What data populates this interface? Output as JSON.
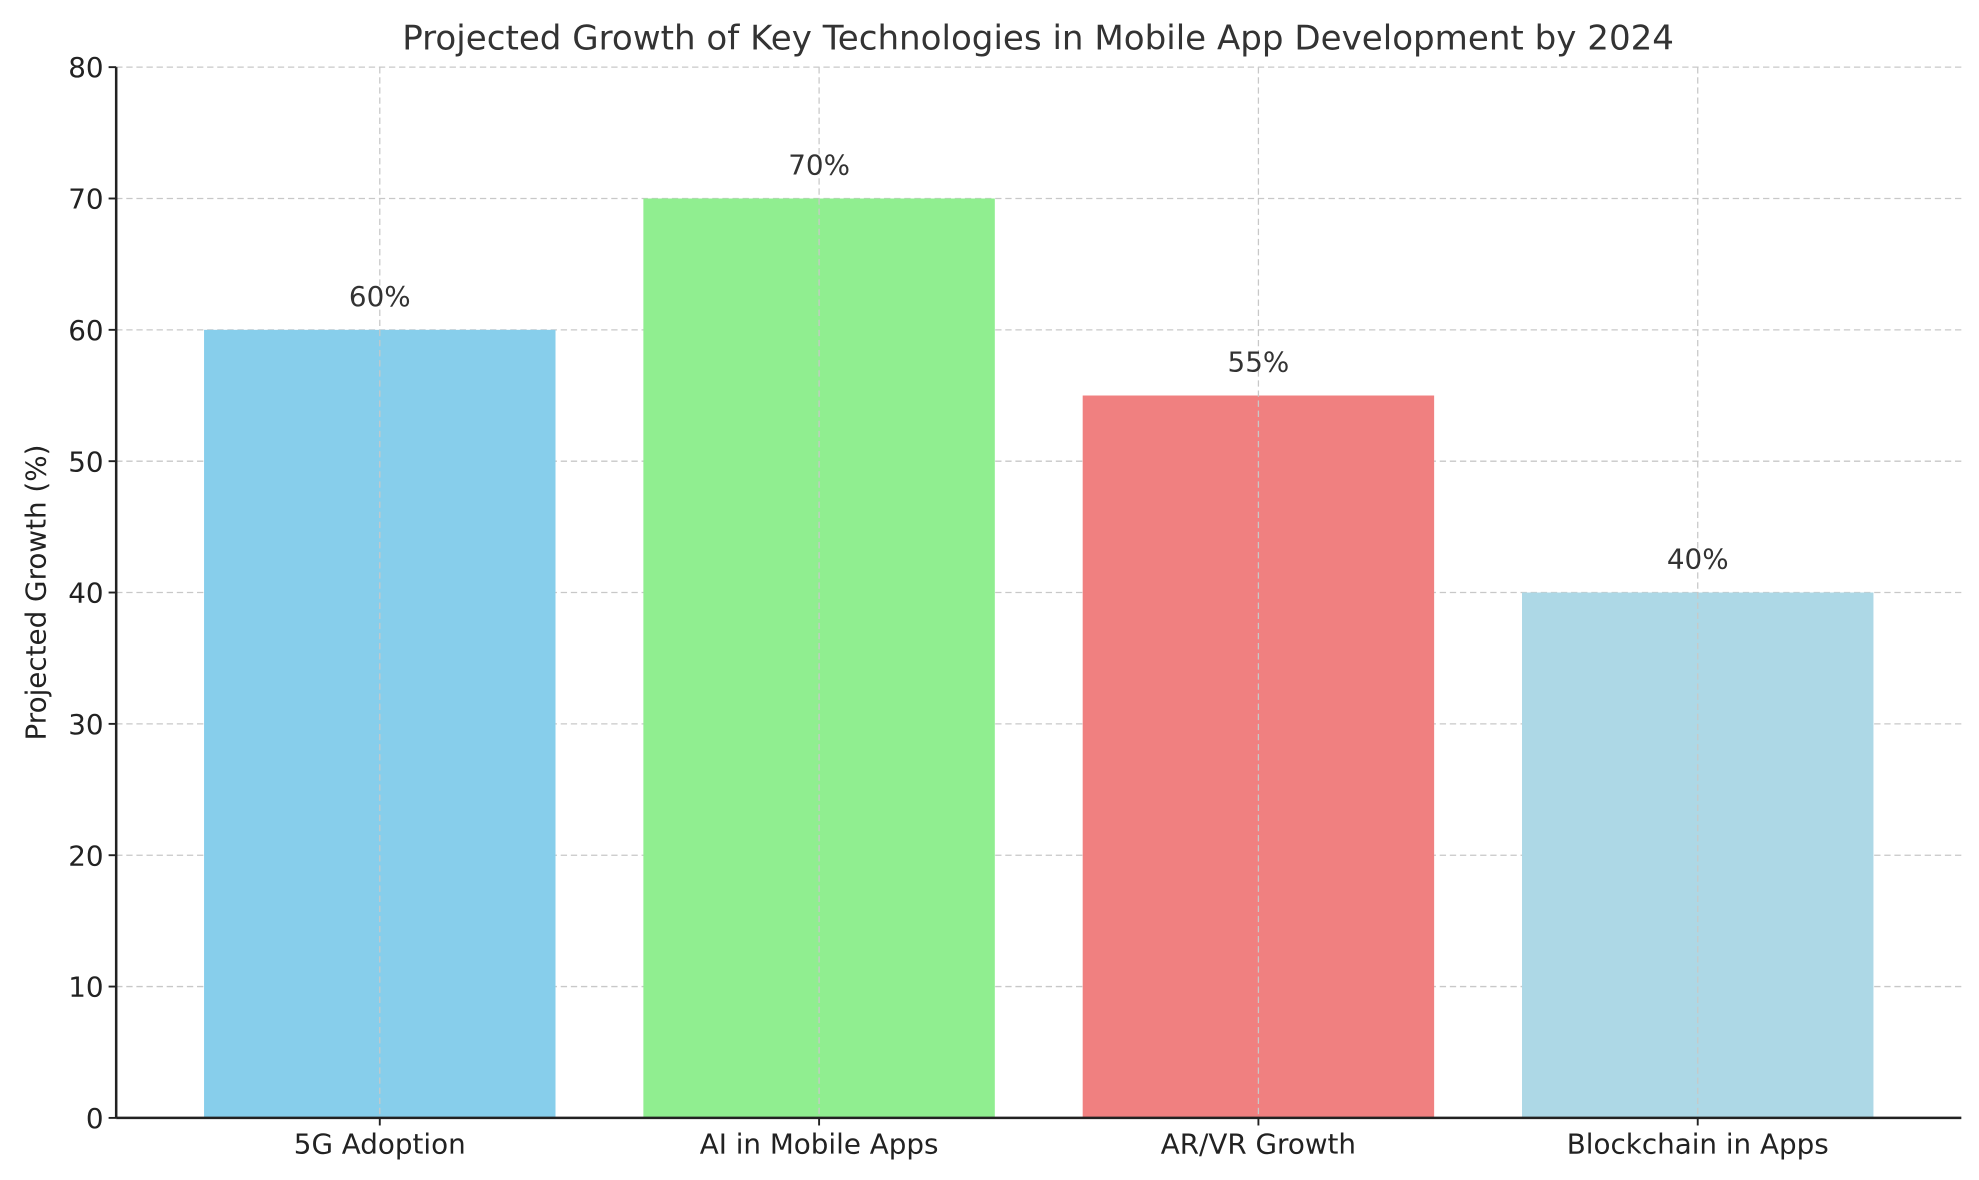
{
  "chart_data": {
    "type": "bar",
    "title": "Projected Growth of Key Technologies in Mobile App Development by 2024",
    "xlabel": "",
    "ylabel": "Projected Growth (%)",
    "categories": [
      "5G Adoption",
      "AI in Mobile Apps",
      "AR/VR Growth",
      "Blockchain in Apps"
    ],
    "values": [
      60,
      70,
      55,
      40
    ],
    "data_labels": [
      "60%",
      "70%",
      "55%",
      "40%"
    ],
    "colors": [
      "#87CEEB",
      "#90EE90",
      "#F08080",
      "#ADD8E6"
    ],
    "ylim": [
      0,
      80
    ],
    "yticks": [
      "0",
      "10",
      "20",
      "30",
      "40",
      "50",
      "60",
      "70",
      "80"
    ],
    "grid": true
  }
}
